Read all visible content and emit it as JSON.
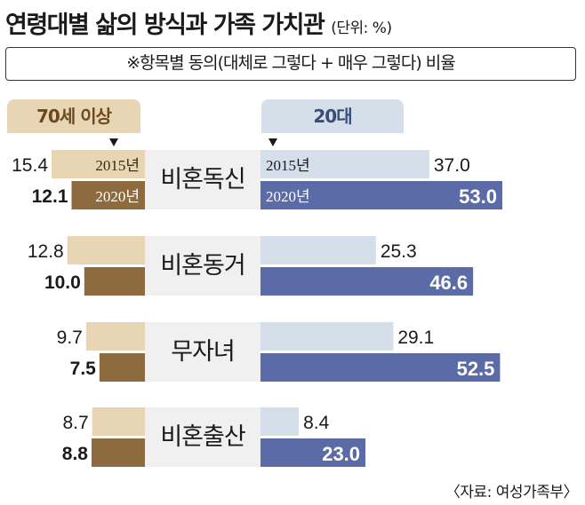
{
  "title": "연령대별 삶의 방식과 가족 가치관",
  "unit": "(단위: %)",
  "note": "※항목별 동의(대체로 그렇다 + 매우 그렇다) 비율",
  "group_left": "70세 이상",
  "group_right": "20대",
  "source": "〈자료: 여성가족부〉",
  "colors": {
    "old_2015": "#e7d5b3",
    "old_2020": "#8e6b3f",
    "young_2015": "#d5dfea",
    "young_2020": "#5b6ba7",
    "label_bg": "#f0f0f0"
  },
  "chart_data": {
    "type": "bar",
    "categories": [
      "비혼독신",
      "비혼동거",
      "무자녀",
      "비혼출산"
    ],
    "series": [
      {
        "name": "70세 이상 2015년",
        "values": [
          15.4,
          12.8,
          9.7,
          8.7
        ]
      },
      {
        "name": "70세 이상 2020년",
        "values": [
          12.1,
          10.0,
          7.5,
          8.8
        ]
      },
      {
        "name": "20대 2015년",
        "values": [
          37.0,
          25.3,
          29.1,
          8.4
        ]
      },
      {
        "name": "20대 2020년",
        "values": [
          53.0,
          46.6,
          52.5,
          23.0
        ]
      }
    ],
    "value_labels": {
      "old_2015": [
        "15.4",
        "12.8",
        "9.7",
        "8.7"
      ],
      "old_2020": [
        "12.1",
        "10.0",
        "7.5",
        "8.8"
      ],
      "young_2015": [
        "37.0",
        "25.3",
        "29.1",
        "8.4"
      ],
      "young_2020": [
        "53.0",
        "46.6",
        "52.5",
        "23.0"
      ]
    },
    "year_labels": [
      "2015년",
      "2020년"
    ]
  }
}
